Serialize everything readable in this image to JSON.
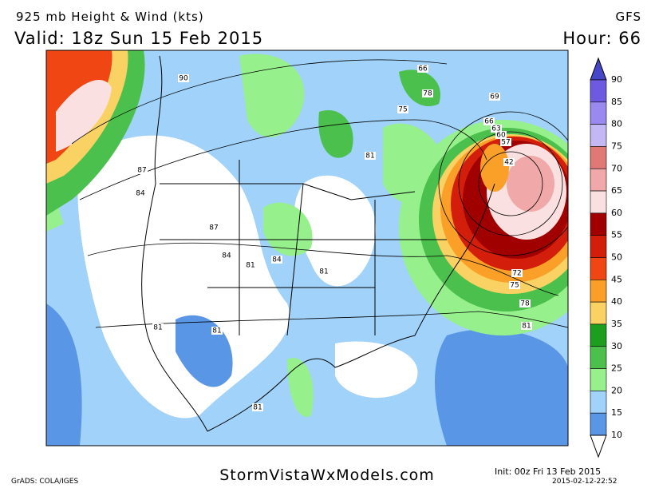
{
  "header": {
    "title": "925 mb Height & Wind (kts)",
    "model": "GFS",
    "valid": "Valid: 18z Sun 15 Feb 2015",
    "hour": "Hour: 66"
  },
  "colorbar": {
    "labels": [
      90,
      85,
      80,
      75,
      70,
      65,
      60,
      55,
      50,
      45,
      40,
      35,
      30,
      25,
      20,
      15,
      10
    ],
    "colors": [
      "#6e5ae0",
      "#9a8af0",
      "#c4b8f4",
      "#e07878",
      "#f0a8a8",
      "#fae0e0",
      "#a00000",
      "#d21e0a",
      "#f04614",
      "#faa028",
      "#fad264",
      "#1e9e1e",
      "#4cc04c",
      "#96f08c",
      "#a0d2fa",
      "#5a96e6"
    ],
    "top_color": "#4646c8"
  },
  "map": {
    "height_labels": [
      "90",
      "87",
      "84",
      "87",
      "84",
      "81",
      "84",
      "81",
      "81",
      "78",
      "75",
      "66",
      "69",
      "66",
      "63",
      "60",
      "57",
      "42",
      "72",
      "75",
      "78",
      "81",
      "81",
      "81",
      "81"
    ]
  },
  "footer": {
    "site": "StormVistaWxModels.com",
    "init": "Init: 00z Fri 13 Feb 2015",
    "stamp": "2015-02-12-22:52",
    "grads": "GrADS: COLA/IGES"
  }
}
